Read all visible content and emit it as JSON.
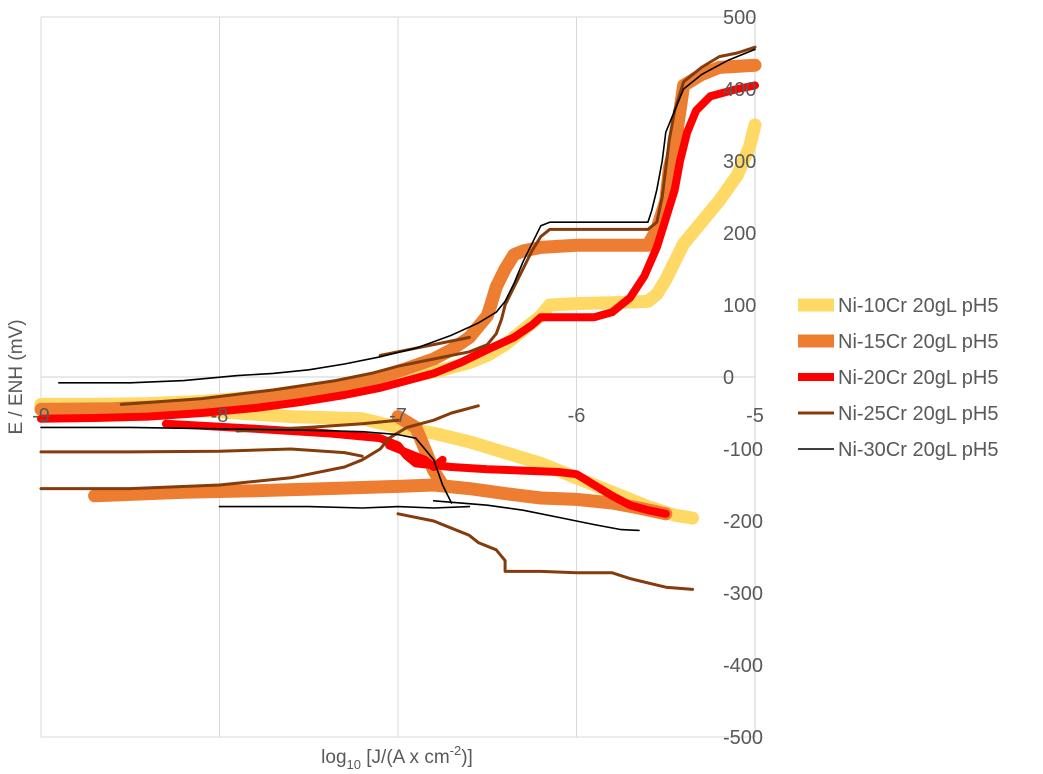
{
  "chart_data": {
    "type": "line",
    "title": "",
    "xlabel": {
      "base": "log",
      "sub": "10",
      "main": " [J/(A x cm",
      "sup": "-2",
      "tail": ")]"
    },
    "ylabel": "E / ENH (mV)",
    "xlim": [
      -9,
      -5
    ],
    "ylim": [
      -500,
      500
    ],
    "x_ticks": [
      "-9",
      "-8",
      "-7",
      "-6",
      "-5"
    ],
    "y_ticks": [
      "500",
      "400",
      "300",
      "200",
      "100",
      "0",
      "-100",
      "-200",
      "-300",
      "-400",
      "-500"
    ],
    "grid": "vertical",
    "legend_position": "right",
    "series": [
      {
        "name": "Ni-10Cr 20gL pH5",
        "color": "#FFD966",
        "width": 13,
        "segments": [
          [
            [
              -9.0,
              -38
            ],
            [
              -8.7,
              -38
            ],
            [
              -8.4,
              -37
            ],
            [
              -8.1,
              -34
            ],
            [
              -7.9,
              -30
            ],
            [
              -7.7,
              -25
            ],
            [
              -7.5,
              -18
            ],
            [
              -7.3,
              -12
            ],
            [
              -7.1,
              -5
            ],
            [
              -6.9,
              2
            ],
            [
              -6.75,
              10
            ],
            [
              -6.6,
              20
            ],
            [
              -6.5,
              30
            ],
            [
              -6.4,
              45
            ],
            [
              -6.3,
              65
            ],
            [
              -6.2,
              85
            ],
            [
              -6.15,
              100
            ],
            [
              -6.0,
              102
            ],
            [
              -5.8,
              103
            ],
            [
              -5.6,
              105
            ],
            [
              -5.55,
              115
            ],
            [
              -5.5,
              135
            ],
            [
              -5.45,
              160
            ],
            [
              -5.4,
              185
            ],
            [
              -5.3,
              215
            ],
            [
              -5.2,
              245
            ],
            [
              -5.1,
              280
            ],
            [
              -5.03,
              320
            ],
            [
              -5.0,
              350
            ]
          ],
          [
            [
              -8.8,
              -40
            ],
            [
              -8.2,
              -45
            ],
            [
              -7.6,
              -55
            ],
            [
              -7.2,
              -58
            ],
            [
              -7.0,
              -70
            ],
            [
              -6.8,
              -78
            ],
            [
              -6.6,
              -90
            ],
            [
              -6.4,
              -105
            ],
            [
              -6.2,
              -120
            ],
            [
              -6.0,
              -140
            ],
            [
              -5.8,
              -160
            ],
            [
              -5.6,
              -180
            ],
            [
              -5.45,
              -192
            ],
            [
              -5.35,
              -196
            ]
          ]
        ]
      },
      {
        "name": "Ni-15Cr 20gL pH5",
        "color": "#ED7D31",
        "width": 13,
        "segments": [
          [
            [
              -9.0,
              -45
            ],
            [
              -8.6,
              -44
            ],
            [
              -8.2,
              -40
            ],
            [
              -7.9,
              -35
            ],
            [
              -7.6,
              -25
            ],
            [
              -7.3,
              -12
            ],
            [
              -7.1,
              0
            ],
            [
              -6.95,
              12
            ],
            [
              -6.8,
              25
            ],
            [
              -6.7,
              38
            ],
            [
              -6.6,
              55
            ],
            [
              -6.55,
              70
            ],
            [
              -6.5,
              85
            ],
            [
              -6.48,
              100
            ],
            [
              -6.45,
              125
            ],
            [
              -6.4,
              150
            ],
            [
              -6.35,
              170
            ],
            [
              -6.3,
              175
            ],
            [
              -6.2,
              180
            ],
            [
              -6.0,
              183
            ],
            [
              -5.8,
              183
            ],
            [
              -5.6,
              183
            ],
            [
              -5.55,
              205
            ],
            [
              -5.5,
              245
            ],
            [
              -5.48,
              290
            ],
            [
              -5.45,
              320
            ],
            [
              -5.42,
              370
            ],
            [
              -5.4,
              405
            ],
            [
              -5.3,
              420
            ],
            [
              -5.2,
              430
            ],
            [
              -5.0,
              433
            ]
          ],
          [
            [
              -8.7,
              -165
            ],
            [
              -8.2,
              -160
            ],
            [
              -7.8,
              -158
            ],
            [
              -7.4,
              -155
            ],
            [
              -7.0,
              -152
            ],
            [
              -6.8,
              -150
            ],
            [
              -6.6,
              -155
            ],
            [
              -6.4,
              -162
            ],
            [
              -6.2,
              -168
            ],
            [
              -6.0,
              -170
            ],
            [
              -5.8,
              -175
            ],
            [
              -5.65,
              -182
            ],
            [
              -5.5,
              -190
            ]
          ],
          [
            [
              -7.0,
              -55
            ],
            [
              -6.9,
              -70
            ],
            [
              -6.85,
              -100
            ],
            [
              -6.8,
              -130
            ],
            [
              -6.75,
              -150
            ]
          ]
        ]
      },
      {
        "name": "Ni-20Cr 20gL pH5",
        "color": "#FF0000",
        "width": 8,
        "segments": [
          [
            [
              -9.0,
              -58
            ],
            [
              -8.7,
              -57
            ],
            [
              -8.4,
              -55
            ],
            [
              -8.1,
              -50
            ],
            [
              -7.8,
              -43
            ],
            [
              -7.55,
              -35
            ],
            [
              -7.3,
              -25
            ],
            [
              -7.1,
              -15
            ],
            [
              -6.95,
              -5
            ],
            [
              -6.8,
              5
            ],
            [
              -6.65,
              20
            ],
            [
              -6.5,
              38
            ],
            [
              -6.35,
              55
            ],
            [
              -6.25,
              72
            ],
            [
              -6.2,
              83
            ],
            [
              -6.0,
              83
            ],
            [
              -5.9,
              83
            ],
            [
              -5.8,
              90
            ],
            [
              -5.7,
              110
            ],
            [
              -5.62,
              140
            ],
            [
              -5.55,
              180
            ],
            [
              -5.5,
              220
            ],
            [
              -5.45,
              260
            ],
            [
              -5.42,
              300
            ],
            [
              -5.38,
              340
            ],
            [
              -5.33,
              370
            ],
            [
              -5.25,
              390
            ],
            [
              -5.1,
              400
            ],
            [
              -5.0,
              405
            ]
          ],
          [
            [
              -8.3,
              -65
            ],
            [
              -7.8,
              -72
            ],
            [
              -7.4,
              -78
            ],
            [
              -7.1,
              -85
            ],
            [
              -7.0,
              -95
            ],
            [
              -6.95,
              -110
            ],
            [
              -6.9,
              -120
            ],
            [
              -6.7,
              -125
            ],
            [
              -6.5,
              -128
            ],
            [
              -6.3,
              -130
            ],
            [
              -6.1,
              -132
            ],
            [
              -6.0,
              -135
            ],
            [
              -5.9,
              -150
            ],
            [
              -5.8,
              -165
            ],
            [
              -5.7,
              -178
            ],
            [
              -5.6,
              -185
            ],
            [
              -5.5,
              -190
            ]
          ],
          [
            [
              -7.05,
              -95
            ],
            [
              -6.95,
              -105
            ],
            [
              -6.85,
              -115
            ],
            [
              -6.8,
              -125
            ],
            [
              -6.75,
              -115
            ]
          ]
        ]
      },
      {
        "name": "Ni-25Cr 20gL pH5",
        "color": "#843C0C",
        "width": 3,
        "segments": [
          [
            [
              -8.55,
              -38
            ],
            [
              -8.1,
              -30
            ],
            [
              -7.7,
              -18
            ],
            [
              -7.35,
              -5
            ],
            [
              -7.15,
              5
            ],
            [
              -7.0,
              15
            ],
            [
              -6.8,
              25
            ],
            [
              -6.6,
              35
            ],
            [
              -6.5,
              45
            ],
            [
              -6.45,
              60
            ],
            [
              -6.42,
              80
            ],
            [
              -6.4,
              100
            ],
            [
              -6.35,
              125
            ],
            [
              -6.3,
              150
            ],
            [
              -6.25,
              175
            ],
            [
              -6.2,
              195
            ],
            [
              -6.15,
              205
            ],
            [
              -6.0,
              205
            ],
            [
              -5.8,
              205
            ],
            [
              -5.6,
              205
            ],
            [
              -5.55,
              215
            ],
            [
              -5.52,
              250
            ],
            [
              -5.5,
              290
            ],
            [
              -5.48,
              330
            ],
            [
              -5.45,
              370
            ],
            [
              -5.4,
              410
            ],
            [
              -5.3,
              430
            ],
            [
              -5.2,
              445
            ],
            [
              -5.1,
              450
            ],
            [
              -5.0,
              458
            ]
          ],
          [
            [
              -9.0,
              -104
            ],
            [
              -8.5,
              -104
            ],
            [
              -8.0,
              -103
            ],
            [
              -7.6,
              -100
            ],
            [
              -7.3,
              -105
            ],
            [
              -7.2,
              -110
            ]
          ],
          [
            [
              -9.0,
              -155
            ],
            [
              -8.5,
              -155
            ],
            [
              -8.0,
              -150
            ],
            [
              -7.6,
              -140
            ],
            [
              -7.3,
              -125
            ],
            [
              -7.2,
              -115
            ],
            [
              -7.1,
              -100
            ],
            [
              -7.05,
              -85
            ],
            [
              -6.95,
              -70
            ],
            [
              -6.8,
              -60
            ],
            [
              -6.7,
              -50
            ],
            [
              -6.55,
              -40
            ]
          ],
          [
            [
              -7.0,
              -190
            ],
            [
              -6.8,
              -200
            ],
            [
              -6.7,
              -210
            ],
            [
              -6.6,
              -220
            ],
            [
              -6.55,
              -230
            ],
            [
              -6.45,
              -240
            ],
            [
              -6.4,
              -255
            ],
            [
              -6.4,
              -270
            ],
            [
              -6.2,
              -270
            ],
            [
              -6.0,
              -272
            ],
            [
              -5.8,
              -272
            ],
            [
              -5.7,
              -280
            ],
            [
              -5.5,
              -292
            ],
            [
              -5.35,
              -295
            ]
          ],
          [
            [
              -7.9,
              -75
            ],
            [
              -7.5,
              -70
            ],
            [
              -7.2,
              -65
            ],
            [
              -7.0,
              -60
            ]
          ],
          [
            [
              -7.1,
              30
            ],
            [
              -6.9,
              40
            ],
            [
              -6.7,
              50
            ],
            [
              -6.6,
              55
            ]
          ]
        ]
      },
      {
        "name": "Ni-30Cr 20gL pH5",
        "color": "#000000",
        "width": 1.6,
        "segments": [
          [
            [
              -8.9,
              -8
            ],
            [
              -8.5,
              -8
            ],
            [
              -8.2,
              -5
            ],
            [
              -7.9,
              2
            ],
            [
              -7.7,
              5
            ],
            [
              -7.5,
              10
            ],
            [
              -7.3,
              18
            ],
            [
              -7.1,
              28
            ],
            [
              -6.9,
              40
            ],
            [
              -6.7,
              58
            ],
            [
              -6.55,
              75
            ],
            [
              -6.45,
              90
            ],
            [
              -6.4,
              105
            ],
            [
              -6.35,
              130
            ],
            [
              -6.3,
              160
            ],
            [
              -6.25,
              185
            ],
            [
              -6.2,
              210
            ],
            [
              -6.15,
              215
            ],
            [
              -6.0,
              215
            ],
            [
              -5.8,
              215
            ],
            [
              -5.6,
              215
            ],
            [
              -5.58,
              230
            ],
            [
              -5.55,
              260
            ],
            [
              -5.52,
              300
            ],
            [
              -5.5,
              340
            ],
            [
              -5.45,
              370
            ],
            [
              -5.4,
              400
            ],
            [
              -5.3,
              420
            ],
            [
              -5.15,
              440
            ],
            [
              -5.0,
              455
            ]
          ],
          [
            [
              -9.0,
              -70
            ],
            [
              -8.5,
              -70
            ],
            [
              -8.0,
              -72
            ],
            [
              -7.5,
              -74
            ],
            [
              -7.2,
              -76
            ],
            [
              -7.0,
              -80
            ],
            [
              -6.9,
              -85
            ],
            [
              -6.85,
              -100
            ],
            [
              -6.8,
              -115
            ],
            [
              -6.75,
              -150
            ],
            [
              -6.7,
              -175
            ]
          ],
          [
            [
              -8.0,
              -180
            ],
            [
              -7.5,
              -180
            ],
            [
              -7.2,
              -182
            ],
            [
              -7.0,
              -180
            ],
            [
              -6.8,
              -182
            ],
            [
              -6.6,
              -180
            ]
          ],
          [
            [
              -6.8,
              -172
            ],
            [
              -6.5,
              -178
            ],
            [
              -6.3,
              -185
            ],
            [
              -6.1,
              -195
            ],
            [
              -5.9,
              -205
            ],
            [
              -5.75,
              -212
            ],
            [
              -5.65,
              -213
            ]
          ]
        ]
      }
    ]
  }
}
